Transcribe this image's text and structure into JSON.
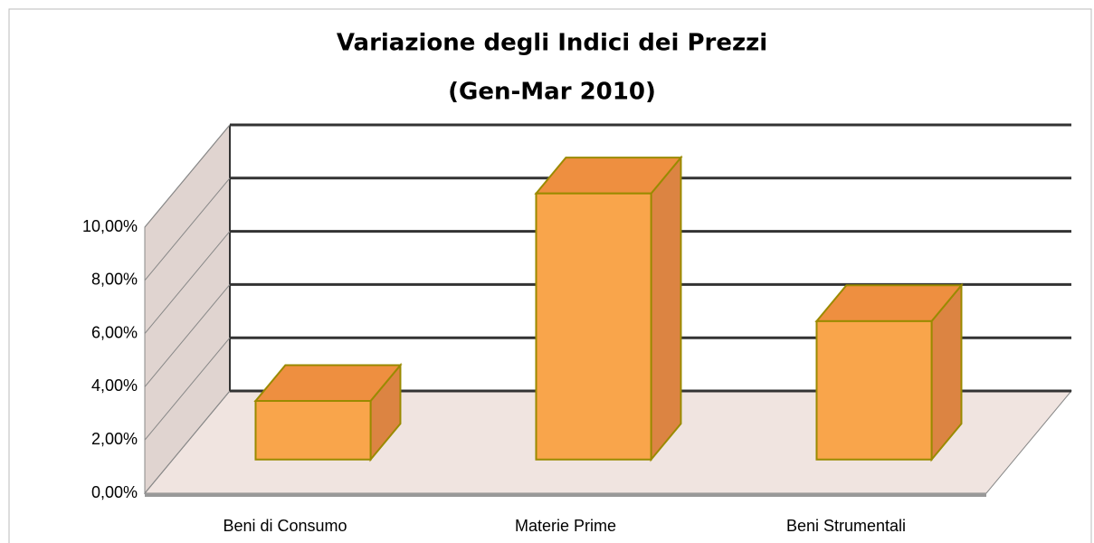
{
  "chart_data": {
    "type": "bar3d",
    "title": "Variazione degli Indici dei Prezzi",
    "subtitle": "(Gen-Mar 2010)",
    "categories": [
      "Beni di Consumo",
      "Materie Prime",
      "Beni Strumentali"
    ],
    "values": [
      2.2,
      10.0,
      5.2
    ],
    "color": "#f9a54b",
    "ylim": [
      0,
      10
    ],
    "yticks": [
      {
        "value": 0,
        "label": "0,00%"
      },
      {
        "value": 2,
        "label": "2,00%"
      },
      {
        "value": 4,
        "label": "4,00%"
      },
      {
        "value": 6,
        "label": "6,00%"
      },
      {
        "value": 8,
        "label": "8,00%"
      },
      {
        "value": 10,
        "label": "10,00%"
      }
    ],
    "grid": true
  }
}
